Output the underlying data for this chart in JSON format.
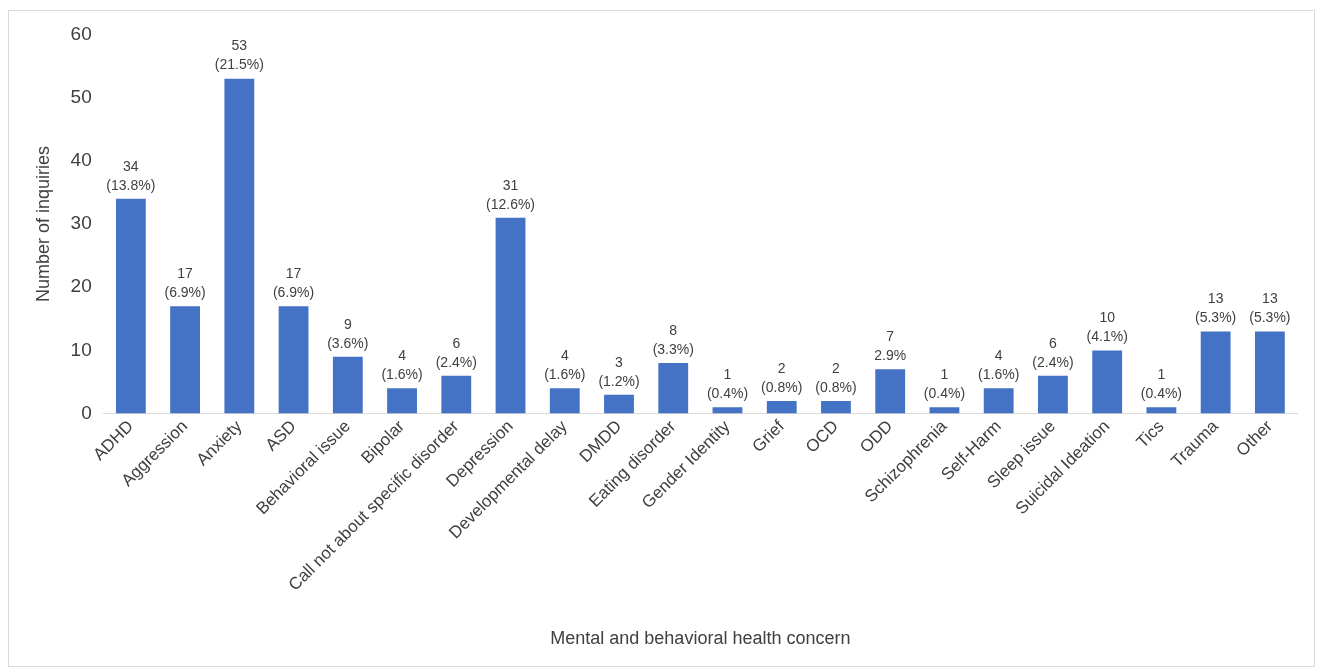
{
  "chart_data": {
    "type": "bar",
    "xlabel": "Mental and behavioral health concern",
    "ylabel": "Number of inquiries",
    "categories": [
      "ADHD",
      "Aggression",
      "Anxiety",
      "ASD",
      "Behavioral issue",
      "Bipolar",
      "Call not about specific disorder",
      "Depression",
      "Developmental delay",
      "DMDD",
      "Eating disorder",
      "Gender Identity",
      "Grief",
      "OCD",
      "ODD",
      "Schizophrenia",
      "Self-Harm",
      "Sleep issue",
      "Suicidal Ideation",
      "Tics",
      "Trauma",
      "Other"
    ],
    "values": [
      34,
      17,
      53,
      17,
      9,
      4,
      6,
      31,
      4,
      3,
      8,
      1,
      2,
      2,
      7,
      1,
      4,
      6,
      10,
      1,
      13,
      13
    ],
    "value_labels": [
      "34\n(13.8%)",
      "17\n(6.9%)",
      "53\n(21.5%)",
      "17\n(6.9%)",
      "9\n(3.6%)",
      "4\n(1.6%)",
      "6\n(2.4%)",
      "31\n(12.6%)",
      "4\n(1.6%)",
      "3\n(1.2%)",
      "8\n(3.3%)",
      "1\n(0.4%)",
      "2\n(0.8%)",
      "2\n(0.8%)",
      "7\n2.9%",
      "1\n(0.4%)",
      "4\n(1.6%)",
      "6\n(2.4%)",
      "10\n(4.1%)",
      "1\n(0.4%)",
      "13\n(5.3%)",
      "13\n(5.3%)"
    ],
    "color": "#4472c4",
    "ylim": [
      0,
      60
    ],
    "yticks": [
      0,
      10,
      20,
      30,
      40,
      50,
      60
    ],
    "grid": false,
    "legend": false
  }
}
